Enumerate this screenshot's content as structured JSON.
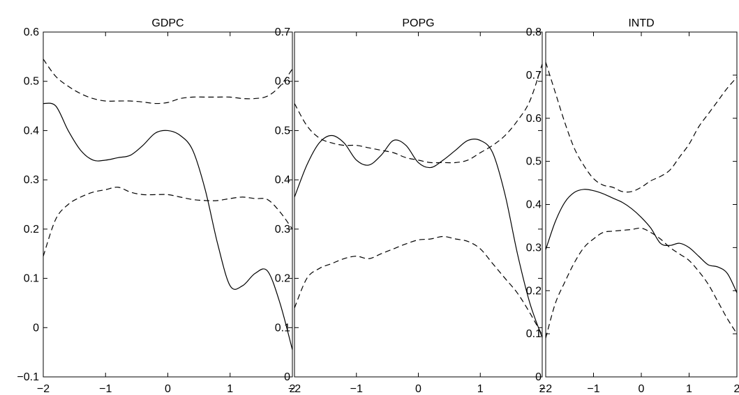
{
  "chart_data": [
    {
      "type": "line",
      "title": "GDPC",
      "xlabel": "",
      "ylabel": "",
      "xlim": [
        -2,
        2
      ],
      "ylim": [
        -0.1,
        0.6
      ],
      "xticks": [
        -2,
        -1,
        0,
        1,
        2
      ],
      "xtick_labels": [
        "−2",
        "−1",
        "0",
        "1",
        "2"
      ],
      "yticks": [
        -0.1,
        0,
        0.1,
        0.2,
        0.3,
        0.4,
        0.5,
        0.6
      ],
      "ytick_labels": [
        "−0.1",
        "0",
        "0.1",
        "0.2",
        "0.3",
        "0.4",
        "0.5",
        "0.6"
      ],
      "series": [
        {
          "style": "solid",
          "x": [
            -2,
            -1.8,
            -1.6,
            -1.4,
            -1.2,
            -1.0,
            -0.8,
            -0.6,
            -0.4,
            -0.2,
            0,
            0.2,
            0.4,
            0.6,
            0.8,
            1.0,
            1.2,
            1.4,
            1.6,
            1.8,
            2.0
          ],
          "y": [
            0.455,
            0.45,
            0.4,
            0.36,
            0.34,
            0.34,
            0.345,
            0.35,
            0.37,
            0.395,
            0.4,
            0.39,
            0.36,
            0.28,
            0.17,
            0.085,
            0.085,
            0.11,
            0.115,
            0.05,
            -0.045
          ]
        },
        {
          "style": "dashed",
          "x": [
            -2,
            -1.8,
            -1.6,
            -1.4,
            -1.2,
            -1.0,
            -0.8,
            -0.6,
            -0.4,
            -0.2,
            0,
            0.2,
            0.4,
            0.6,
            0.8,
            1.0,
            1.2,
            1.4,
            1.6,
            1.8,
            2.0
          ],
          "y": [
            0.545,
            0.51,
            0.49,
            0.475,
            0.465,
            0.46,
            0.46,
            0.46,
            0.458,
            0.455,
            0.457,
            0.465,
            0.468,
            0.468,
            0.468,
            0.468,
            0.465,
            0.465,
            0.47,
            0.49,
            0.525
          ]
        },
        {
          "style": "dashed",
          "x": [
            -2,
            -1.8,
            -1.6,
            -1.4,
            -1.2,
            -1.0,
            -0.8,
            -0.6,
            -0.4,
            -0.2,
            0,
            0.2,
            0.4,
            0.6,
            0.8,
            1.0,
            1.2,
            1.4,
            1.6,
            1.8,
            2.0
          ],
          "y": [
            0.145,
            0.22,
            0.25,
            0.265,
            0.275,
            0.28,
            0.285,
            0.275,
            0.27,
            0.27,
            0.27,
            0.265,
            0.26,
            0.258,
            0.258,
            0.262,
            0.265,
            0.262,
            0.26,
            0.235,
            0.2
          ]
        }
      ]
    },
    {
      "type": "line",
      "title": "POPG",
      "xlabel": "",
      "ylabel": "",
      "xlim": [
        -2,
        2
      ],
      "ylim": [
        0,
        0.7
      ],
      "xticks": [
        -2,
        -1,
        0,
        1,
        2
      ],
      "xtick_labels": [
        "−2",
        "−1",
        "0",
        "1",
        "2"
      ],
      "yticks": [
        0,
        0.1,
        0.2,
        0.3,
        0.4,
        0.5,
        0.6,
        0.7
      ],
      "ytick_labels": [
        "0",
        "0.1",
        "0.2",
        "0.3",
        "0.4",
        "0.5",
        "0.6",
        "0.7"
      ],
      "series": [
        {
          "style": "solid",
          "x": [
            -2,
            -1.8,
            -1.6,
            -1.4,
            -1.2,
            -1.0,
            -0.8,
            -0.6,
            -0.4,
            -0.2,
            0,
            0.2,
            0.4,
            0.6,
            0.8,
            1.0,
            1.2,
            1.4,
            1.6,
            1.8,
            2.0
          ],
          "y": [
            0.365,
            0.43,
            0.475,
            0.49,
            0.475,
            0.44,
            0.43,
            0.45,
            0.48,
            0.47,
            0.435,
            0.425,
            0.44,
            0.46,
            0.48,
            0.48,
            0.455,
            0.37,
            0.25,
            0.15,
            0.08
          ]
        },
        {
          "style": "dashed",
          "x": [
            -2,
            -1.8,
            -1.6,
            -1.4,
            -1.2,
            -1.0,
            -0.8,
            -0.6,
            -0.4,
            -0.2,
            0,
            0.2,
            0.4,
            0.6,
            0.8,
            1.0,
            1.2,
            1.4,
            1.6,
            1.8,
            2.0
          ],
          "y": [
            0.555,
            0.51,
            0.485,
            0.475,
            0.47,
            0.47,
            0.465,
            0.46,
            0.455,
            0.445,
            0.44,
            0.435,
            0.435,
            0.435,
            0.44,
            0.455,
            0.47,
            0.49,
            0.52,
            0.56,
            0.635
          ]
        },
        {
          "style": "dashed",
          "x": [
            -2,
            -1.8,
            -1.6,
            -1.4,
            -1.2,
            -1.0,
            -0.8,
            -0.6,
            -0.4,
            -0.2,
            0,
            0.2,
            0.4,
            0.6,
            0.8,
            1.0,
            1.2,
            1.4,
            1.6,
            1.8,
            2.0
          ],
          "y": [
            0.14,
            0.2,
            0.22,
            0.23,
            0.24,
            0.245,
            0.24,
            0.25,
            0.26,
            0.27,
            0.278,
            0.28,
            0.285,
            0.28,
            0.275,
            0.26,
            0.23,
            0.2,
            0.17,
            0.13,
            0.085
          ]
        }
      ]
    },
    {
      "type": "line",
      "title": "INTD",
      "xlabel": "",
      "ylabel": "",
      "xlim": [
        -2,
        2
      ],
      "ylim": [
        0,
        0.8
      ],
      "xticks": [
        -2,
        -1,
        0,
        1,
        2
      ],
      "xtick_labels": [
        "−2",
        "−1",
        "0",
        "1",
        "2"
      ],
      "yticks": [
        0,
        0.1,
        0.2,
        0.3,
        0.4,
        0.5,
        0.6,
        0.7,
        0.8
      ],
      "ytick_labels": [
        "0",
        "0.1",
        "0.2",
        "0.3",
        "0.4",
        "0.5",
        "0.6",
        "0.7",
        "0.8"
      ],
      "series": [
        {
          "style": "solid",
          "x": [
            -2,
            -1.8,
            -1.6,
            -1.4,
            -1.2,
            -1.0,
            -0.8,
            -0.6,
            -0.4,
            -0.2,
            0,
            0.2,
            0.4,
            0.6,
            0.8,
            1.0,
            1.2,
            1.4,
            1.6,
            1.8,
            2.0
          ],
          "y": [
            0.295,
            0.36,
            0.405,
            0.428,
            0.435,
            0.432,
            0.425,
            0.415,
            0.405,
            0.39,
            0.37,
            0.345,
            0.31,
            0.305,
            0.31,
            0.3,
            0.28,
            0.26,
            0.255,
            0.24,
            0.195
          ]
        },
        {
          "style": "dashed",
          "x": [
            -2,
            -1.8,
            -1.6,
            -1.4,
            -1.2,
            -1.0,
            -0.8,
            -0.6,
            -0.4,
            -0.2,
            0,
            0.2,
            0.4,
            0.6,
            0.8,
            1.0,
            1.2,
            1.4,
            1.6,
            1.8,
            2.0
          ],
          "y": [
            0.73,
            0.66,
            0.59,
            0.53,
            0.49,
            0.46,
            0.445,
            0.44,
            0.43,
            0.43,
            0.44,
            0.455,
            0.465,
            0.48,
            0.51,
            0.54,
            0.58,
            0.61,
            0.64,
            0.67,
            0.695
          ]
        },
        {
          "style": "dashed",
          "x": [
            -2,
            -1.8,
            -1.6,
            -1.4,
            -1.2,
            -1.0,
            -0.8,
            -0.6,
            -0.4,
            -0.2,
            0,
            0.2,
            0.4,
            0.6,
            0.8,
            1.0,
            1.2,
            1.4,
            1.6,
            1.8,
            2.0
          ],
          "y": [
            0.09,
            0.17,
            0.22,
            0.265,
            0.3,
            0.32,
            0.335,
            0.338,
            0.34,
            0.342,
            0.345,
            0.335,
            0.32,
            0.3,
            0.285,
            0.27,
            0.245,
            0.215,
            0.175,
            0.135,
            0.1
          ]
        }
      ]
    }
  ]
}
